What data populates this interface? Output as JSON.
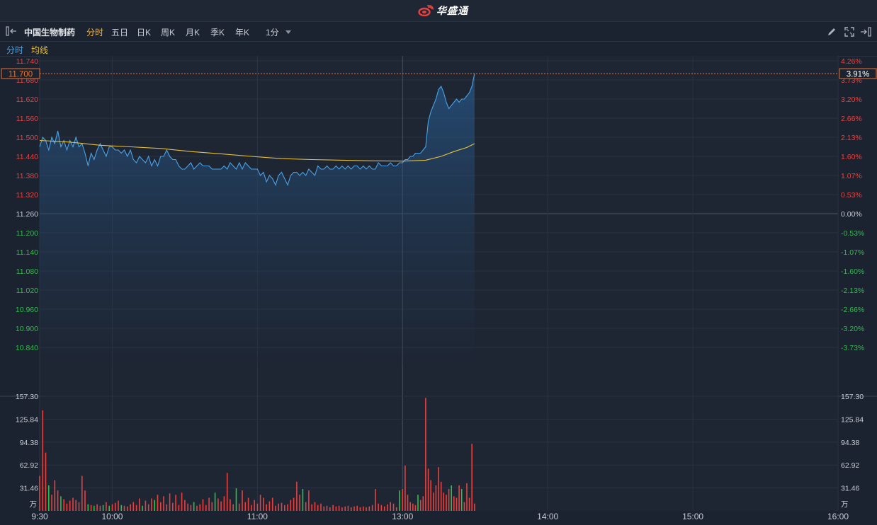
{
  "header": {
    "brand": "华盛通"
  },
  "toolbar": {
    "stock_name": "中国生物制药",
    "periods": [
      "分时",
      "五日",
      "日K",
      "周K",
      "月K",
      "季K",
      "年K",
      "1分"
    ],
    "active_period": "分时"
  },
  "legend": {
    "line1": "分时",
    "line2": "均线"
  },
  "colors": {
    "price_line": "#4aa3e8",
    "avg_line": "#e8c13a",
    "up": "#e8413d",
    "down": "#2fbf4a",
    "neutral": "#c8ccd4",
    "marker": "#e8732e"
  },
  "chart_data": {
    "type": "line",
    "title": "",
    "xlabel": "",
    "ylabel": "",
    "prev_close": 11.26,
    "ylim": [
      10.78,
      11.74
    ],
    "price_ticks": [
      "11.740",
      "11.680",
      "11.620",
      "11.560",
      "11.500",
      "11.440",
      "11.380",
      "11.320",
      "11.260",
      "11.200",
      "11.140",
      "11.080",
      "11.020",
      "10.960",
      "10.900",
      "10.840"
    ],
    "pct_ticks": [
      "4.26%",
      "3.73%",
      "3.20%",
      "2.66%",
      "2.13%",
      "1.60%",
      "1.07%",
      "0.53%",
      "0.00%",
      "-0.53%",
      "-1.07%",
      "-1.60%",
      "-2.13%",
      "-2.66%",
      "-3.20%",
      "-3.73%"
    ],
    "marker": {
      "price": "11.700",
      "pct": "3.91%"
    },
    "time_labels": [
      "9:30",
      "10:00",
      "11:00",
      "13:00",
      "14:00",
      "15:00",
      "16:00"
    ],
    "price_series": {
      "name": "分时",
      "points": [
        [
          0,
          11.47
        ],
        [
          1,
          11.5
        ],
        [
          2,
          11.49
        ],
        [
          3,
          11.46
        ],
        [
          4,
          11.5
        ],
        [
          5,
          11.48
        ],
        [
          6,
          11.52
        ],
        [
          7,
          11.47
        ],
        [
          8,
          11.49
        ],
        [
          9,
          11.46
        ],
        [
          10,
          11.49
        ],
        [
          11,
          11.47
        ],
        [
          12,
          11.5
        ],
        [
          13,
          11.47
        ],
        [
          14,
          11.48
        ],
        [
          15,
          11.45
        ],
        [
          16,
          11.41
        ],
        [
          17,
          11.45
        ],
        [
          18,
          11.43
        ],
        [
          19,
          11.46
        ],
        [
          20,
          11.48
        ],
        [
          21,
          11.46
        ],
        [
          22,
          11.44
        ],
        [
          23,
          11.47
        ],
        [
          24,
          11.47
        ],
        [
          25,
          11.46
        ],
        [
          26,
          11.46
        ],
        [
          27,
          11.45
        ],
        [
          28,
          11.46
        ],
        [
          29,
          11.44
        ],
        [
          30,
          11.46
        ],
        [
          31,
          11.43
        ],
        [
          32,
          11.42
        ],
        [
          33,
          11.44
        ],
        [
          34,
          11.43
        ],
        [
          35,
          11.42
        ],
        [
          36,
          11.44
        ],
        [
          37,
          11.41
        ],
        [
          38,
          11.43
        ],
        [
          39,
          11.41
        ],
        [
          40,
          11.44
        ],
        [
          41,
          11.44
        ],
        [
          42,
          11.46
        ],
        [
          43,
          11.44
        ],
        [
          44,
          11.43
        ],
        [
          45,
          11.43
        ],
        [
          46,
          11.41
        ],
        [
          47,
          11.4
        ],
        [
          48,
          11.4
        ],
        [
          49,
          11.41
        ],
        [
          50,
          11.42
        ],
        [
          51,
          11.4
        ],
        [
          52,
          11.41
        ],
        [
          53,
          11.42
        ],
        [
          54,
          11.41
        ],
        [
          55,
          11.41
        ],
        [
          56,
          11.41
        ],
        [
          57,
          11.4
        ],
        [
          58,
          11.4
        ],
        [
          59,
          11.4
        ],
        [
          60,
          11.4
        ],
        [
          61,
          11.41
        ],
        [
          62,
          11.4
        ],
        [
          63,
          11.42
        ],
        [
          64,
          11.41
        ],
        [
          65,
          11.4
        ],
        [
          66,
          11.42
        ],
        [
          67,
          11.4
        ],
        [
          68,
          11.42
        ],
        [
          69,
          11.41
        ],
        [
          70,
          11.4
        ],
        [
          71,
          11.4
        ],
        [
          72,
          11.4
        ],
        [
          73,
          11.38
        ],
        [
          74,
          11.39
        ],
        [
          75,
          11.36
        ],
        [
          76,
          11.38
        ],
        [
          77,
          11.37
        ],
        [
          78,
          11.35
        ],
        [
          79,
          11.38
        ],
        [
          80,
          11.39
        ],
        [
          81,
          11.37
        ],
        [
          82,
          11.35
        ],
        [
          83,
          11.38
        ],
        [
          84,
          11.39
        ],
        [
          85,
          11.39
        ],
        [
          86,
          11.38
        ],
        [
          87,
          11.39
        ],
        [
          88,
          11.38
        ],
        [
          89,
          11.4
        ],
        [
          90,
          11.39
        ],
        [
          91,
          11.38
        ],
        [
          92,
          11.41
        ],
        [
          93,
          11.4
        ],
        [
          94,
          11.4
        ],
        [
          95,
          11.41
        ],
        [
          96,
          11.4
        ],
        [
          97,
          11.4
        ],
        [
          98,
          11.41
        ],
        [
          99,
          11.4
        ],
        [
          100,
          11.41
        ],
        [
          101,
          11.4
        ],
        [
          102,
          11.41
        ],
        [
          103,
          11.4
        ],
        [
          104,
          11.41
        ],
        [
          105,
          11.41
        ],
        [
          106,
          11.4
        ],
        [
          107,
          11.41
        ],
        [
          108,
          11.4
        ],
        [
          109,
          11.41
        ],
        [
          110,
          11.4
        ],
        [
          111,
          11.4
        ],
        [
          112,
          11.42
        ],
        [
          113,
          11.41
        ],
        [
          114,
          11.41
        ],
        [
          115,
          11.41
        ],
        [
          116,
          11.42
        ],
        [
          117,
          11.41
        ],
        [
          118,
          11.41
        ],
        [
          119,
          11.42
        ],
        [
          120,
          11.42
        ],
        [
          121,
          11.43
        ],
        [
          122,
          11.43
        ],
        [
          123,
          11.44
        ],
        [
          124,
          11.44
        ],
        [
          125,
          11.45
        ],
        [
          126,
          11.45
        ],
        [
          127,
          11.45
        ],
        [
          128,
          11.46
        ],
        [
          129,
          11.47
        ],
        [
          130,
          11.55
        ],
        [
          131,
          11.58
        ],
        [
          132,
          11.6
        ],
        [
          133,
          11.62
        ],
        [
          134,
          11.65
        ],
        [
          135,
          11.66
        ],
        [
          136,
          11.64
        ],
        [
          137,
          11.61
        ],
        [
          138,
          11.59
        ],
        [
          139,
          11.6
        ],
        [
          140,
          11.61
        ],
        [
          141,
          11.62
        ],
        [
          142,
          11.61
        ],
        [
          143,
          11.62
        ],
        [
          144,
          11.62
        ],
        [
          145,
          11.63
        ],
        [
          146,
          11.64
        ],
        [
          147,
          11.66
        ],
        [
          148,
          11.7
        ]
      ]
    },
    "avg_series": {
      "name": "均线",
      "points": [
        [
          0,
          11.49
        ],
        [
          10,
          11.485
        ],
        [
          20,
          11.475
        ],
        [
          30,
          11.47
        ],
        [
          40,
          11.465
        ],
        [
          50,
          11.455
        ],
        [
          60,
          11.448
        ],
        [
          70,
          11.44
        ],
        [
          80,
          11.433
        ],
        [
          90,
          11.43
        ],
        [
          100,
          11.428
        ],
        [
          110,
          11.426
        ],
        [
          120,
          11.425
        ],
        [
          129,
          11.428
        ],
        [
          135,
          11.44
        ],
        [
          140,
          11.455
        ],
        [
          145,
          11.468
        ],
        [
          148,
          11.48
        ]
      ]
    },
    "volume": {
      "unit": "万",
      "ylim": [
        0,
        157.3
      ],
      "ticks": [
        "157.30",
        "125.84",
        "94.38",
        "62.92",
        "31.46"
      ],
      "bars": [
        [
          0,
          48,
          "up"
        ],
        [
          1,
          138,
          "up"
        ],
        [
          2,
          80,
          "up"
        ],
        [
          3,
          35,
          "down"
        ],
        [
          4,
          22,
          "up"
        ],
        [
          5,
          42,
          "up"
        ],
        [
          6,
          28,
          "up"
        ],
        [
          7,
          20,
          "down"
        ],
        [
          8,
          16,
          "up"
        ],
        [
          9,
          10,
          "up"
        ],
        [
          10,
          14,
          "up"
        ],
        [
          11,
          18,
          "up"
        ],
        [
          12,
          15,
          "up"
        ],
        [
          13,
          12,
          "up"
        ],
        [
          14,
          48,
          "up"
        ],
        [
          15,
          28,
          "up"
        ],
        [
          16,
          9,
          "down"
        ],
        [
          17,
          8,
          "up"
        ],
        [
          18,
          7,
          "down"
        ],
        [
          19,
          9,
          "up"
        ],
        [
          20,
          7,
          "up"
        ],
        [
          21,
          8,
          "down"
        ],
        [
          22,
          12,
          "up"
        ],
        [
          23,
          7,
          "down"
        ],
        [
          24,
          9,
          "up"
        ],
        [
          25,
          11,
          "up"
        ],
        [
          26,
          14,
          "up"
        ],
        [
          27,
          8,
          "down"
        ],
        [
          28,
          7,
          "up"
        ],
        [
          29,
          6,
          "up"
        ],
        [
          30,
          9,
          "up"
        ],
        [
          31,
          12,
          "up"
        ],
        [
          32,
          8,
          "up"
        ],
        [
          33,
          17,
          "up"
        ],
        [
          34,
          7,
          "down"
        ],
        [
          35,
          14,
          "up"
        ],
        [
          36,
          9,
          "up"
        ],
        [
          37,
          17,
          "up"
        ],
        [
          38,
          15,
          "down"
        ],
        [
          39,
          22,
          "up"
        ],
        [
          40,
          12,
          "up"
        ],
        [
          41,
          20,
          "up"
        ],
        [
          42,
          9,
          "up"
        ],
        [
          43,
          24,
          "up"
        ],
        [
          44,
          11,
          "up"
        ],
        [
          45,
          22,
          "up"
        ],
        [
          46,
          8,
          "up"
        ],
        [
          47,
          25,
          "up"
        ],
        [
          48,
          15,
          "up"
        ],
        [
          49,
          10,
          "up"
        ],
        [
          50,
          8,
          "up"
        ],
        [
          51,
          12,
          "down"
        ],
        [
          52,
          7,
          "up"
        ],
        [
          53,
          9,
          "up"
        ],
        [
          54,
          16,
          "up"
        ],
        [
          55,
          8,
          "up"
        ],
        [
          56,
          18,
          "up"
        ],
        [
          57,
          12,
          "up"
        ],
        [
          58,
          25,
          "down"
        ],
        [
          59,
          17,
          "up"
        ],
        [
          60,
          13,
          "up"
        ],
        [
          61,
          20,
          "up"
        ],
        [
          62,
          52,
          "up"
        ],
        [
          63,
          16,
          "up"
        ],
        [
          64,
          9,
          "up"
        ],
        [
          65,
          31,
          "down"
        ],
        [
          66,
          10,
          "up"
        ],
        [
          67,
          28,
          "up"
        ],
        [
          68,
          12,
          "up"
        ],
        [
          69,
          18,
          "up"
        ],
        [
          70,
          8,
          "up"
        ],
        [
          71,
          15,
          "up"
        ],
        [
          72,
          10,
          "up"
        ],
        [
          73,
          22,
          "up"
        ],
        [
          74,
          18,
          "up"
        ],
        [
          75,
          9,
          "up"
        ],
        [
          76,
          13,
          "up"
        ],
        [
          77,
          18,
          "up"
        ],
        [
          78,
          7,
          "up"
        ],
        [
          79,
          10,
          "up"
        ],
        [
          80,
          11,
          "up"
        ],
        [
          81,
          8,
          "up"
        ],
        [
          82,
          9,
          "up"
        ],
        [
          83,
          15,
          "up"
        ],
        [
          84,
          18,
          "up"
        ],
        [
          85,
          40,
          "up"
        ],
        [
          86,
          22,
          "up"
        ],
        [
          87,
          30,
          "down"
        ],
        [
          88,
          12,
          "up"
        ],
        [
          89,
          28,
          "up"
        ],
        [
          90,
          9,
          "up"
        ],
        [
          91,
          12,
          "up"
        ],
        [
          92,
          8,
          "up"
        ],
        [
          93,
          10,
          "up"
        ],
        [
          94,
          6,
          "up"
        ],
        [
          95,
          7,
          "up"
        ],
        [
          96,
          5,
          "up"
        ],
        [
          97,
          8,
          "up"
        ],
        [
          98,
          6,
          "up"
        ],
        [
          99,
          7,
          "up"
        ],
        [
          100,
          5,
          "up"
        ],
        [
          101,
          6,
          "up"
        ],
        [
          102,
          7,
          "up"
        ],
        [
          103,
          5,
          "up"
        ],
        [
          104,
          6,
          "up"
        ],
        [
          105,
          7,
          "up"
        ],
        [
          106,
          5,
          "up"
        ],
        [
          107,
          6,
          "up"
        ],
        [
          108,
          5,
          "up"
        ],
        [
          109,
          6,
          "up"
        ],
        [
          110,
          8,
          "up"
        ],
        [
          111,
          30,
          "up"
        ],
        [
          112,
          10,
          "up"
        ],
        [
          113,
          8,
          "up"
        ],
        [
          114,
          6,
          "up"
        ],
        [
          115,
          9,
          "up"
        ],
        [
          116,
          12,
          "up"
        ],
        [
          117,
          10,
          "up"
        ],
        [
          118,
          5,
          "up"
        ],
        [
          119,
          28,
          "down"
        ],
        [
          120,
          30,
          "up"
        ],
        [
          121,
          62,
          "up"
        ],
        [
          122,
          22,
          "up"
        ],
        [
          123,
          12,
          "up"
        ],
        [
          124,
          10,
          "up"
        ],
        [
          125,
          8,
          "up"
        ],
        [
          126,
          22,
          "down"
        ],
        [
          127,
          15,
          "up"
        ],
        [
          128,
          20,
          "up"
        ],
        [
          129,
          155,
          "up"
        ],
        [
          130,
          58,
          "up"
        ],
        [
          131,
          42,
          "up"
        ],
        [
          132,
          25,
          "up"
        ],
        [
          133,
          35,
          "up"
        ],
        [
          134,
          60,
          "up"
        ],
        [
          135,
          40,
          "up"
        ],
        [
          136,
          25,
          "up"
        ],
        [
          137,
          22,
          "up"
        ],
        [
          138,
          30,
          "up"
        ],
        [
          139,
          35,
          "down"
        ],
        [
          140,
          20,
          "up"
        ],
        [
          141,
          18,
          "up"
        ],
        [
          142,
          35,
          "up"
        ],
        [
          143,
          30,
          "down"
        ],
        [
          144,
          12,
          "up"
        ],
        [
          145,
          38,
          "up"
        ],
        [
          146,
          18,
          "up"
        ],
        [
          147,
          92,
          "up"
        ],
        [
          148,
          10,
          "up"
        ]
      ]
    }
  }
}
